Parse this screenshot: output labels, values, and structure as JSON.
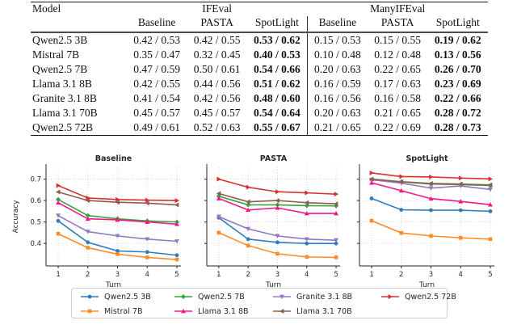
{
  "table": {
    "model_header": "Model",
    "groups": [
      {
        "label": "IFEval"
      },
      {
        "label": "ManyIFEval"
      }
    ],
    "sub_headers": [
      "Baseline",
      "PASTA",
      "SpotLight",
      "Baseline",
      "PASTA",
      "SpotLight"
    ],
    "bold_value_columns": [
      2,
      5
    ],
    "rows": [
      {
        "model": "Qwen2.5 3B",
        "values": [
          "0.42 / 0.53",
          "0.42 / 0.55",
          "0.53 / 0.62",
          "0.15 / 0.53",
          "0.15 / 0.55",
          "0.19 / 0.62"
        ]
      },
      {
        "model": "Mistral 7B",
        "values": [
          "0.35 / 0.47",
          "0.32 / 0.45",
          "0.40 / 0.53",
          "0.10 / 0.48",
          "0.12 / 0.48",
          "0.13 / 0.56"
        ]
      },
      {
        "model": "Qwen2.5 7B",
        "values": [
          "0.47 / 0.59",
          "0.50 / 0.61",
          "0.54 / 0.66",
          "0.20 / 0.63",
          "0.22 / 0.65",
          "0.26 / 0.70"
        ]
      },
      {
        "model": "Llama 3.1 8B",
        "values": [
          "0.42 / 0.55",
          "0.44 / 0.56",
          "0.51 / 0.62",
          "0.16 / 0.59",
          "0.17 / 0.63",
          "0.23 / 0.69"
        ]
      },
      {
        "model": "Granite 3.1 8B",
        "values": [
          "0.41 / 0.54",
          "0.42 / 0.56",
          "0.48 / 0.60",
          "0.16 / 0.56",
          "0.16 / 0.58",
          "0.22 / 0.66"
        ]
      },
      {
        "model": "Llama 3.1 70B",
        "values": [
          "0.45 / 0.57",
          "0.45 / 0.57",
          "0.54 / 0.64",
          "0.20 / 0.63",
          "0.21 / 0.65",
          "0.28 / 0.72"
        ]
      },
      {
        "model": "Qwen2.5 72B",
        "values": [
          "0.49 / 0.61",
          "0.52 / 0.63",
          "0.55 / 0.67",
          "0.21 / 0.65",
          "0.22 / 0.69",
          "0.28 / 0.73"
        ]
      }
    ]
  },
  "chart_styles": {
    "models": [
      {
        "name": "Qwen2.5 3B",
        "color": "#2e7ebc",
        "marker": "circle"
      },
      {
        "name": "Mistral 7B",
        "color": "#ff8c29",
        "marker": "square"
      },
      {
        "name": "Qwen2.5 7B",
        "color": "#37a33c",
        "marker": "diamond"
      },
      {
        "name": "Llama 3.1 8B",
        "color": "#f0188c",
        "marker": "tri-up"
      },
      {
        "name": "Granite 3.1 8B",
        "color": "#9678c2",
        "marker": "tri-down"
      },
      {
        "name": "Llama 3.1 70B",
        "color": "#8e5c4e",
        "marker": "tri-left"
      },
      {
        "name": "Qwen2.5 72B",
        "color": "#d93030",
        "marker": "tri-right"
      }
    ],
    "grid_color": "#cfcfcf",
    "spine_color": "#262626"
  },
  "chart_data": [
    {
      "type": "line",
      "title": "Baseline",
      "xlabel": "Turn",
      "ylabel": "Accuracy",
      "x": [
        1,
        2,
        3,
        4,
        5
      ],
      "xticks": [
        1,
        2,
        3,
        4,
        5
      ],
      "yticks": [
        0.4,
        0.5,
        0.6,
        0.7
      ],
      "ylim": [
        0.295,
        0.755
      ],
      "grid": true,
      "series": [
        {
          "name": "Qwen2.5 3B",
          "values": [
            0.505,
            0.405,
            0.365,
            0.36,
            0.345
          ]
        },
        {
          "name": "Mistral 7B",
          "values": [
            0.445,
            0.38,
            0.35,
            0.335,
            0.325
          ]
        },
        {
          "name": "Qwen2.5 7B",
          "values": [
            0.605,
            0.53,
            0.515,
            0.505,
            0.5
          ]
        },
        {
          "name": "Llama 3.1 8B",
          "values": [
            0.59,
            0.515,
            0.51,
            0.5,
            0.49
          ]
        },
        {
          "name": "Granite 3.1 8B",
          "values": [
            0.53,
            0.455,
            0.435,
            0.42,
            0.41
          ]
        },
        {
          "name": "Llama 3.1 70B",
          "values": [
            0.64,
            0.6,
            0.592,
            0.588,
            0.58
          ]
        },
        {
          "name": "Qwen2.5 72B",
          "values": [
            0.67,
            0.612,
            0.605,
            0.602,
            0.6
          ]
        }
      ]
    },
    {
      "type": "line",
      "title": "PASTA",
      "xlabel": "Turn",
      "ylabel": "",
      "x": [
        1,
        2,
        3,
        4,
        5
      ],
      "xticks": [
        1,
        2,
        3,
        4,
        5
      ],
      "yticks": [
        0.4,
        0.5,
        0.6,
        0.7
      ],
      "ylim": [
        0.295,
        0.755
      ],
      "grid": true,
      "series": [
        {
          "name": "Qwen2.5 3B",
          "values": [
            0.52,
            0.42,
            0.405,
            0.4,
            0.4
          ]
        },
        {
          "name": "Mistral 7B",
          "values": [
            0.45,
            0.39,
            0.352,
            0.337,
            0.335
          ]
        },
        {
          "name": "Qwen2.5 7B",
          "values": [
            0.62,
            0.58,
            0.58,
            0.576,
            0.575
          ]
        },
        {
          "name": "Llama 3.1 8B",
          "values": [
            0.61,
            0.556,
            0.566,
            0.54,
            0.54
          ]
        },
        {
          "name": "Granite 3.1 8B",
          "values": [
            0.525,
            0.468,
            0.435,
            0.42,
            0.415
          ]
        },
        {
          "name": "Llama 3.1 70B",
          "values": [
            0.633,
            0.594,
            0.6,
            0.59,
            0.585
          ]
        },
        {
          "name": "Qwen2.5 72B",
          "values": [
            0.7,
            0.662,
            0.641,
            0.636,
            0.63
          ]
        }
      ]
    },
    {
      "type": "line",
      "title": "SpotLight",
      "xlabel": "Turn",
      "ylabel": "",
      "x": [
        1,
        2,
        3,
        4,
        5
      ],
      "xticks": [
        1,
        2,
        3,
        4,
        5
      ],
      "yticks": [
        0.4,
        0.5,
        0.6,
        0.7
      ],
      "ylim": [
        0.295,
        0.755
      ],
      "grid": true,
      "series": [
        {
          "name": "Qwen2.5 3B",
          "values": [
            0.61,
            0.557,
            0.555,
            0.555,
            0.55
          ]
        },
        {
          "name": "Mistral 7B",
          "values": [
            0.506,
            0.449,
            0.435,
            0.426,
            0.42
          ]
        },
        {
          "name": "Qwen2.5 7B",
          "values": [
            0.696,
            0.687,
            0.677,
            0.674,
            0.67
          ]
        },
        {
          "name": "Llama 3.1 8B",
          "values": [
            0.683,
            0.646,
            0.609,
            0.596,
            0.581
          ]
        },
        {
          "name": "Granite 3.1 8B",
          "values": [
            0.697,
            0.681,
            0.658,
            0.668,
            0.652
          ]
        },
        {
          "name": "Llama 3.1 70B",
          "values": [
            0.7,
            0.688,
            0.68,
            0.677,
            0.673
          ]
        },
        {
          "name": "Qwen2.5 72B",
          "values": [
            0.729,
            0.712,
            0.71,
            0.705,
            0.701
          ]
        }
      ]
    }
  ],
  "legend": {
    "order": [
      "Qwen2.5 3B",
      "Mistral 7B",
      "Qwen2.5 7B",
      "Llama 3.1 8B",
      "Granite 3.1 8B",
      "Llama 3.1 70B",
      "Qwen2.5 72B"
    ]
  }
}
